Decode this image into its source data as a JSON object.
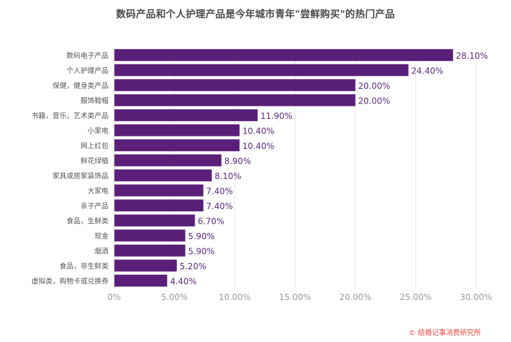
{
  "chart_data": {
    "type": "bar",
    "orientation": "horizontal",
    "title": "数码产品和个人护理产品是今年城市青年\"尝鲜购买\"的热门产品",
    "categories": [
      "数码电子产品",
      "个人护理产品",
      "保健，健身类产品",
      "服饰鞋帽",
      "书籍，音乐，艺术类产品",
      "小家电",
      "网上红包",
      "鲜花绿植",
      "家具或居家装饰品",
      "大家电",
      "亲子产品",
      "食品，生鲜类",
      "现金",
      "烟酒",
      "食品，非生鲜类",
      "虚拟类，购物卡或兑换券"
    ],
    "values": [
      28.1,
      24.4,
      20.0,
      20.0,
      11.9,
      10.4,
      10.4,
      8.9,
      8.1,
      7.4,
      7.4,
      6.7,
      5.9,
      5.9,
      5.2,
      4.4
    ],
    "value_labels": [
      "28.10%",
      "24.40%",
      "20.00%",
      "20.00%",
      "11.90%",
      "10.40%",
      "10.40%",
      "8.90%",
      "8.10%",
      "7.40%",
      "7.40%",
      "6.70%",
      "5.90%",
      "5.90%",
      "5.20%",
      "4.40%"
    ],
    "xlim": [
      0,
      30
    ],
    "xticks": [
      0,
      5,
      10,
      15,
      20,
      25,
      30
    ],
    "xtick_labels": [
      "0%",
      "5.00%",
      "10.00%",
      "15.00%",
      "20.00%",
      "25.00%",
      "30.00%"
    ],
    "grid": true,
    "legend": false,
    "bar_color": "#5a1f79"
  },
  "source_note": "© 结婚记事消费研究所"
}
